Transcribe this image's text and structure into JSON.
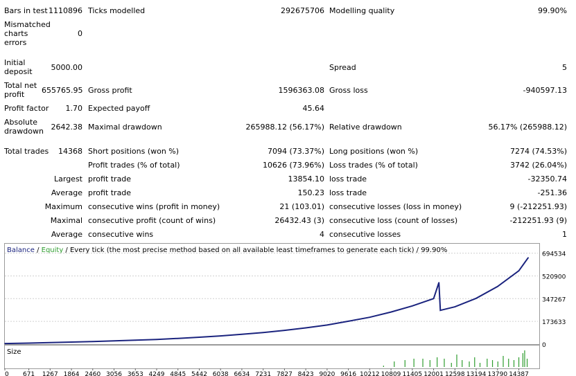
{
  "stats": {
    "bars_in_test": {
      "label": "Bars in test",
      "value": "1110896"
    },
    "ticks_modelled": {
      "label": "Ticks modelled",
      "value": "292675706"
    },
    "modelling_quality": {
      "label": "Modelling quality",
      "value": "99.90%"
    },
    "mismatched": {
      "label": "Mismatched charts errors",
      "value": "0"
    },
    "initial_deposit": {
      "label": "Initial deposit",
      "value": "5000.00"
    },
    "spread": {
      "label": "Spread",
      "value": "5"
    },
    "total_net_profit": {
      "label": "Total net profit",
      "value": "655765.95"
    },
    "gross_profit": {
      "label": "Gross profit",
      "value": "1596363.08"
    },
    "gross_loss": {
      "label": "Gross loss",
      "value": "-940597.13"
    },
    "profit_factor": {
      "label": "Profit factor",
      "value": "1.70"
    },
    "expected_payoff": {
      "label": "Expected payoff",
      "value": "45.64"
    },
    "absolute_drawdown": {
      "label": "Absolute drawdown",
      "value": "2642.38"
    },
    "maximal_drawdown": {
      "label": "Maximal drawdown",
      "value": "265988.12 (56.17%)"
    },
    "relative_drawdown": {
      "label": "Relative drawdown",
      "value": "56.17% (265988.12)"
    },
    "total_trades": {
      "label": "Total trades",
      "value": "14368"
    },
    "short_positions": {
      "label": "Short positions (won %)",
      "value": "7094 (73.37%)"
    },
    "long_positions": {
      "label": "Long positions (won %)",
      "value": "7274 (74.53%)"
    },
    "profit_trades": {
      "label": "Profit trades (% of total)",
      "value": "10626 (73.96%)"
    },
    "loss_trades": {
      "label": "Loss trades (% of total)",
      "value": "3742 (26.04%)"
    },
    "largest": {
      "label": "Largest",
      "profit_label": "profit trade",
      "profit_value": "13854.10",
      "loss_label": "loss trade",
      "loss_value": "-32350.74"
    },
    "average": {
      "label": "Average",
      "profit_label": "profit trade",
      "profit_value": "150.23",
      "loss_label": "loss trade",
      "loss_value": "-251.36"
    },
    "maximum": {
      "label": "Maximum",
      "profit_label": "consecutive wins (profit in money)",
      "profit_value": "21 (103.01)",
      "loss_label": "consecutive losses (loss in money)",
      "loss_value": "9 (-212251.93)"
    },
    "maximal": {
      "label": "Maximal",
      "profit_label": "consecutive profit (count of wins)",
      "profit_value": "26432.43 (3)",
      "loss_label": "consecutive loss (count of losses)",
      "loss_value": "-212251.93 (9)"
    },
    "average_consecutive": {
      "label": "Average",
      "profit_label": "consecutive wins",
      "profit_value": "4",
      "loss_label": "consecutive losses",
      "loss_value": "1"
    }
  },
  "chart": {
    "legend_balance": "Balance",
    "legend_sep": " / ",
    "legend_equity": "Equity",
    "legend_rest": " / Every tick (the most precise method based on all available least timeframes to generate each tick) / 99.90%",
    "balance_color": "#1a237e",
    "equity_color": "#2e9d2e",
    "size_label": "Size"
  },
  "chart_data": {
    "type": "line",
    "y_ticks": [
      "694534",
      "520900",
      "347267",
      "173633",
      "0"
    ],
    "y_tick_values": [
      694534,
      520900,
      347267,
      173633,
      0
    ],
    "ylim": [
      0,
      740000
    ],
    "xlim": [
      0,
      14920
    ],
    "x_ticks": [
      "0",
      "671",
      "1267",
      "1864",
      "2460",
      "3056",
      "3653",
      "4249",
      "4845",
      "5442",
      "6038",
      "6634",
      "7231",
      "7827",
      "8423",
      "9020",
      "9616",
      "10212",
      "10809",
      "11405",
      "12001",
      "12598",
      "13194",
      "13790",
      "14387"
    ],
    "x_tick_values": [
      0,
      671,
      1267,
      1864,
      2460,
      3056,
      3653,
      4249,
      4845,
      5442,
      6038,
      6634,
      7231,
      7827,
      8423,
      9020,
      9616,
      10212,
      10809,
      11405,
      12001,
      12598,
      13194,
      13790,
      14387
    ],
    "series": [
      {
        "name": "Balance",
        "x": [
          0,
          671,
          1267,
          1864,
          2460,
          3056,
          3653,
          4249,
          4845,
          5442,
          6038,
          6634,
          7231,
          7827,
          8423,
          9020,
          9616,
          10212,
          10809,
          11405,
          12001,
          12150,
          12190,
          12598,
          13194,
          13790,
          14387,
          14650
        ],
        "y": [
          5000,
          8000,
          12000,
          16000,
          20000,
          25000,
          30000,
          36000,
          44000,
          53000,
          63000,
          75000,
          89000,
          105000,
          124000,
          146000,
          175000,
          205000,
          245000,
          292000,
          348000,
          470000,
          258000,
          285000,
          350000,
          440000,
          560000,
          660000
        ]
      }
    ],
    "size_bars": {
      "x": [
        10600,
        10900,
        11200,
        11450,
        11700,
        11900,
        12100,
        12300,
        12500,
        12650,
        12800,
        13000,
        13150,
        13300,
        13500,
        13650,
        13800,
        13950,
        14100,
        14250,
        14387,
        14500,
        14550,
        14620
      ],
      "y": [
        2,
        8,
        10,
        12,
        12,
        10,
        14,
        12,
        6,
        18,
        10,
        8,
        14,
        6,
        12,
        10,
        8,
        16,
        12,
        10,
        14,
        20,
        24,
        12
      ]
    }
  }
}
